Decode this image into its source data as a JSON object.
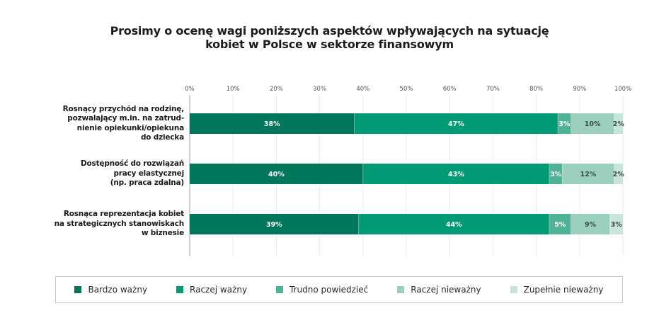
{
  "chart_data": {
    "type": "bar",
    "orientation": "horizontal",
    "stacked": true,
    "title_lines": [
      "Prosimy o ocenę wagi poniższych aspektów wpływających na sytuację",
      "kobiet w Polsce w sektorze finansowym"
    ],
    "xlim": [
      0,
      100
    ],
    "x_ticks": [
      "0%",
      "10%",
      "20%",
      "30%",
      "40%",
      "50%",
      "60%",
      "70%",
      "80%",
      "90%",
      "100%"
    ],
    "x_tick_values": [
      0,
      10,
      20,
      30,
      40,
      50,
      60,
      70,
      80,
      90,
      100
    ],
    "grid": true,
    "legend_position": "bottom",
    "categories": [
      {
        "lines": [
          "Rosnący przychód na rodzinę,",
          "pozwalający m.in. na zatrud-",
          "nienie opiekunki/opiekuna",
          "do dziecka"
        ]
      },
      {
        "lines": [
          "Dostępność do rozwiązań",
          "pracy elastycznej",
          "(np. praca zdalna)"
        ]
      },
      {
        "lines": [
          "Rosnąca reprezentacja kobiet",
          "na strategicznych stanowiskach",
          "w biznesie"
        ]
      }
    ],
    "series": [
      {
        "name": "Bardzo ważny",
        "color": "#00765a",
        "label_color": "#ffffff",
        "values": [
          38,
          40,
          39
        ],
        "labels": [
          "38%",
          "40%",
          "39%"
        ]
      },
      {
        "name": "Raczej ważny",
        "color": "#009b75",
        "label_color": "#ffffff",
        "values": [
          47,
          43,
          44
        ],
        "labels": [
          "47%",
          "43%",
          "44%"
        ]
      },
      {
        "name": "Trudno powiedzieć",
        "color": "#4fb295",
        "label_color": "#ffffff",
        "values": [
          3,
          3,
          5
        ],
        "labels": [
          "3%",
          "3%",
          "5%"
        ]
      },
      {
        "name": "Raczej nieważny",
        "color": "#9ad0bd",
        "label_color": "#3d4a45",
        "values": [
          10,
          12,
          9
        ],
        "labels": [
          "10%",
          "12%",
          "9%"
        ]
      },
      {
        "name": "Zupełnie nieważny",
        "color": "#c9e5da",
        "label_color": "#3d4a45",
        "values": [
          2,
          2,
          3
        ],
        "labels": [
          "2%",
          "2%",
          "3%"
        ]
      }
    ]
  }
}
